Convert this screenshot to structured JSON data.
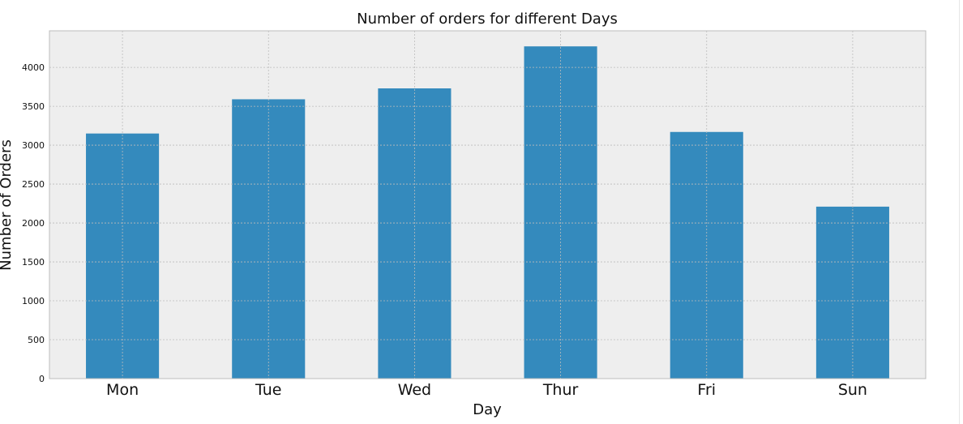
{
  "chart_data": {
    "type": "bar",
    "title": "Number of orders for different Days",
    "xlabel": "Day",
    "ylabel": "Number of Orders",
    "categories": [
      "Mon",
      "Tue",
      "Wed",
      "Thur",
      "Fri",
      "Sun"
    ],
    "values": [
      3150,
      3590,
      3730,
      4270,
      3170,
      2210
    ],
    "ylim": [
      0,
      4470
    ],
    "yticks": [
      0,
      500,
      1000,
      1500,
      2000,
      2500,
      3000,
      3500,
      4000
    ],
    "grid": true,
    "bar_color": "#348abd",
    "plot_background": "#eeeeee",
    "grid_color": "#bcbcbc",
    "frame_color": "#bcbcbc"
  }
}
